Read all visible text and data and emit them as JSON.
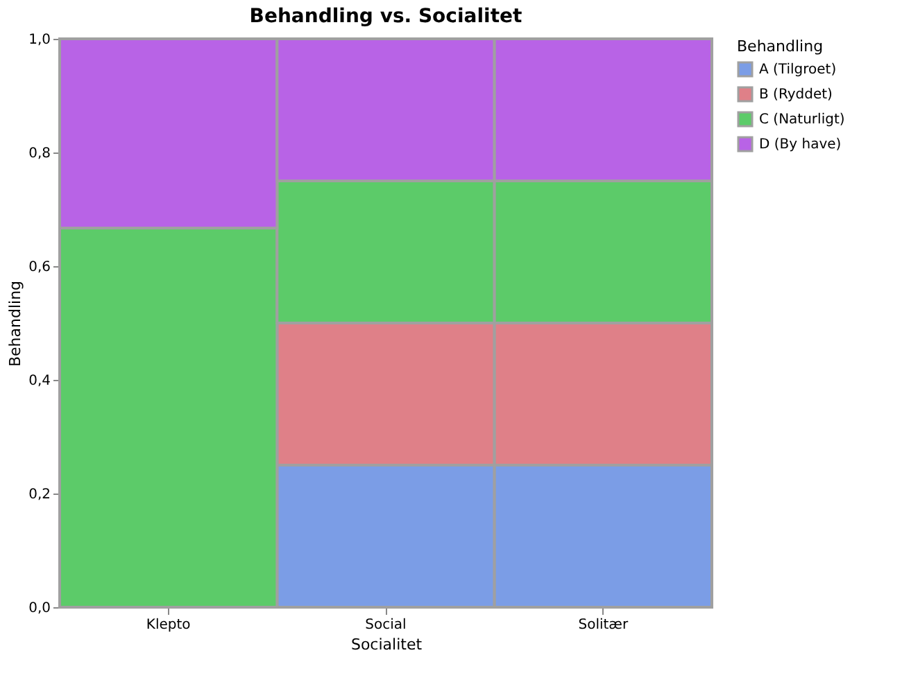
{
  "chart_data": {
    "type": "bar",
    "title": "Behandling vs. Socialitet",
    "xlabel": "Socialitet",
    "ylabel": "Behandling",
    "legend_title": "Behandling",
    "categories": [
      "Klepto",
      "Social",
      "Solitær"
    ],
    "stacked": true,
    "series": [
      {
        "name": "A (Tilgroet)",
        "color": "#7b9de6",
        "values": [
          0,
          0.25,
          0.25
        ]
      },
      {
        "name": "B (Ryddet)",
        "color": "#df8088",
        "values": [
          0,
          0.25,
          0.25
        ]
      },
      {
        "name": "C (Naturligt)",
        "color": "#5ccb69",
        "values": [
          0.667,
          0.25,
          0.25
        ]
      },
      {
        "name": "D (By have)",
        "color": "#b863e6",
        "values": [
          0.333,
          0.25,
          0.25
        ]
      }
    ],
    "ylim": [
      0,
      1
    ],
    "yticks": [
      {
        "value": 0,
        "label": "0,0"
      },
      {
        "value": 0.2,
        "label": "0,2"
      },
      {
        "value": 0.4,
        "label": "0,4"
      },
      {
        "value": 0.6,
        "label": "0,6"
      },
      {
        "value": 0.8,
        "label": "0,8"
      },
      {
        "value": 1,
        "label": "1,0"
      }
    ],
    "legend": "top right"
  }
}
